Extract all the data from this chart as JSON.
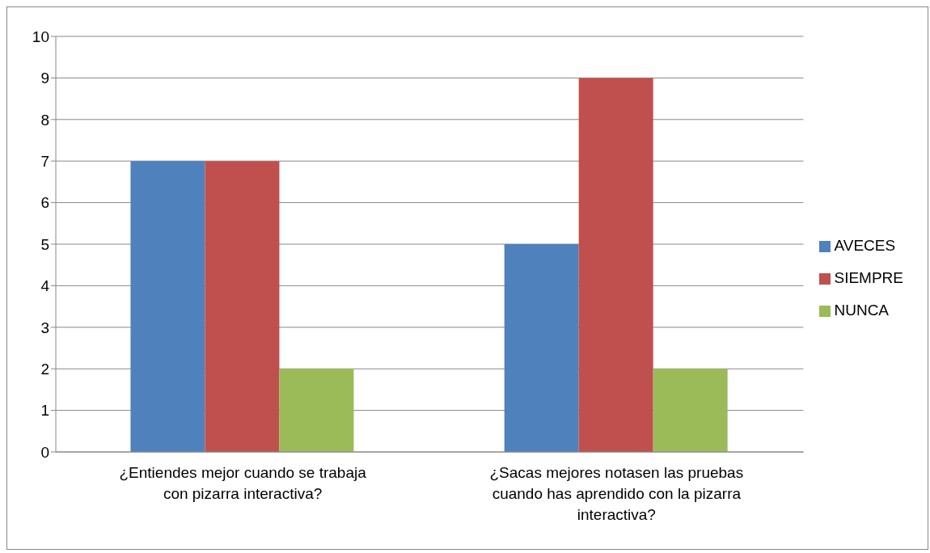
{
  "chart_data": {
    "type": "bar",
    "categories": [
      "¿Entiendes mejor cuando se trabaja con pizarra interactiva?",
      "¿Sacas mejores notasen las pruebas cuando has aprendido con la pizarra interactiva?"
    ],
    "series": [
      {
        "name": "AVECES",
        "color": "#4f81bd",
        "values": [
          7,
          5
        ]
      },
      {
        "name": "SIEMPRE",
        "color": "#c0504d",
        "values": [
          7,
          9
        ]
      },
      {
        "name": "NUNCA",
        "color": "#9bbb59",
        "values": [
          2,
          2
        ]
      }
    ],
    "ylim": [
      0,
      10
    ],
    "yticks": [
      0,
      1,
      2,
      3,
      4,
      5,
      6,
      7,
      8,
      9,
      10
    ],
    "grid": "y",
    "legend": "right"
  }
}
